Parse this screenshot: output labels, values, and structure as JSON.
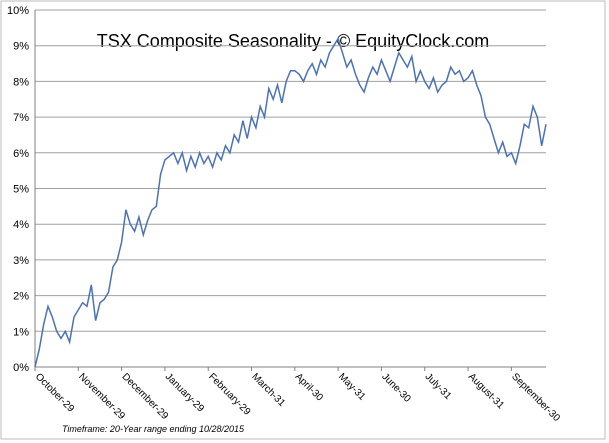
{
  "chart_data": {
    "type": "line",
    "title": "TSX Composite Seasonality - © EquityClock.com",
    "footnote": "Timeframe: 20-Year range ending 10/28/2015",
    "categories": [
      "October-29",
      null,
      null,
      null,
      null,
      null,
      null,
      null,
      null,
      null,
      "November-29",
      null,
      null,
      null,
      null,
      null,
      null,
      null,
      null,
      null,
      "December-29",
      null,
      null,
      null,
      null,
      null,
      null,
      null,
      null,
      null,
      "January-29",
      null,
      null,
      null,
      null,
      null,
      null,
      null,
      null,
      null,
      "February-29",
      null,
      null,
      null,
      null,
      null,
      null,
      null,
      null,
      null,
      "March-31",
      null,
      null,
      null,
      null,
      null,
      null,
      null,
      null,
      null,
      "April-30",
      null,
      null,
      null,
      null,
      null,
      null,
      null,
      null,
      null,
      "May-31",
      null,
      null,
      null,
      null,
      null,
      null,
      null,
      null,
      null,
      "June-30",
      null,
      null,
      null,
      null,
      null,
      null,
      null,
      null,
      null,
      "July-31",
      null,
      null,
      null,
      null,
      null,
      null,
      null,
      null,
      null,
      "August-31",
      null,
      null,
      null,
      null,
      null,
      null,
      null,
      null,
      null,
      "September-30",
      null,
      null,
      null,
      null,
      null,
      null,
      null,
      null
    ],
    "values": [
      0,
      0.5,
      1.2,
      1.7,
      1.4,
      1.0,
      0.8,
      1.0,
      0.7,
      1.4,
      1.6,
      1.8,
      1.7,
      2.3,
      1.3,
      1.8,
      1.9,
      2.1,
      2.8,
      3.0,
      3.5,
      4.4,
      4.0,
      3.8,
      4.2,
      3.7,
      4.1,
      4.4,
      4.5,
      5.4,
      5.8,
      5.9,
      6.0,
      5.7,
      6.0,
      5.5,
      5.9,
      5.6,
      6.0,
      5.7,
      5.9,
      5.6,
      6.0,
      5.8,
      6.2,
      6.0,
      6.5,
      6.3,
      6.9,
      6.4,
      7.0,
      6.7,
      7.3,
      7.0,
      7.8,
      7.5,
      7.9,
      7.4,
      8.0,
      8.3,
      8.3,
      8.2,
      8.0,
      8.3,
      8.5,
      8.2,
      8.6,
      8.4,
      8.8,
      9.0,
      9.2,
      8.8,
      8.4,
      8.6,
      8.2,
      7.9,
      7.7,
      8.1,
      8.4,
      8.2,
      8.6,
      8.3,
      8.0,
      8.4,
      8.8,
      8.6,
      8.4,
      8.7,
      8.0,
      8.3,
      8.0,
      7.8,
      8.1,
      7.7,
      7.9,
      8.0,
      8.4,
      8.2,
      8.3,
      8.0,
      8.1,
      8.3,
      7.9,
      7.6,
      7.0,
      6.8,
      6.4,
      6.0,
      6.3,
      5.9,
      6.0,
      5.7,
      6.2,
      6.8,
      6.7,
      7.3,
      7.0,
      6.2,
      6.8
    ],
    "color": "#4a72b8",
    "ylim": [
      0,
      10
    ],
    "yticks": [
      {
        "value": 0,
        "label": "0%"
      },
      {
        "value": 1,
        "label": "1%"
      },
      {
        "value": 2,
        "label": "2%"
      },
      {
        "value": 3,
        "label": "3%"
      },
      {
        "value": 4,
        "label": "4%"
      },
      {
        "value": 5,
        "label": "5%"
      },
      {
        "value": 6,
        "label": "6%"
      },
      {
        "value": 7,
        "label": "7%"
      },
      {
        "value": 8,
        "label": "8%"
      },
      {
        "value": 9,
        "label": "9%"
      },
      {
        "value": 10,
        "label": "10%"
      }
    ],
    "grid": true
  }
}
